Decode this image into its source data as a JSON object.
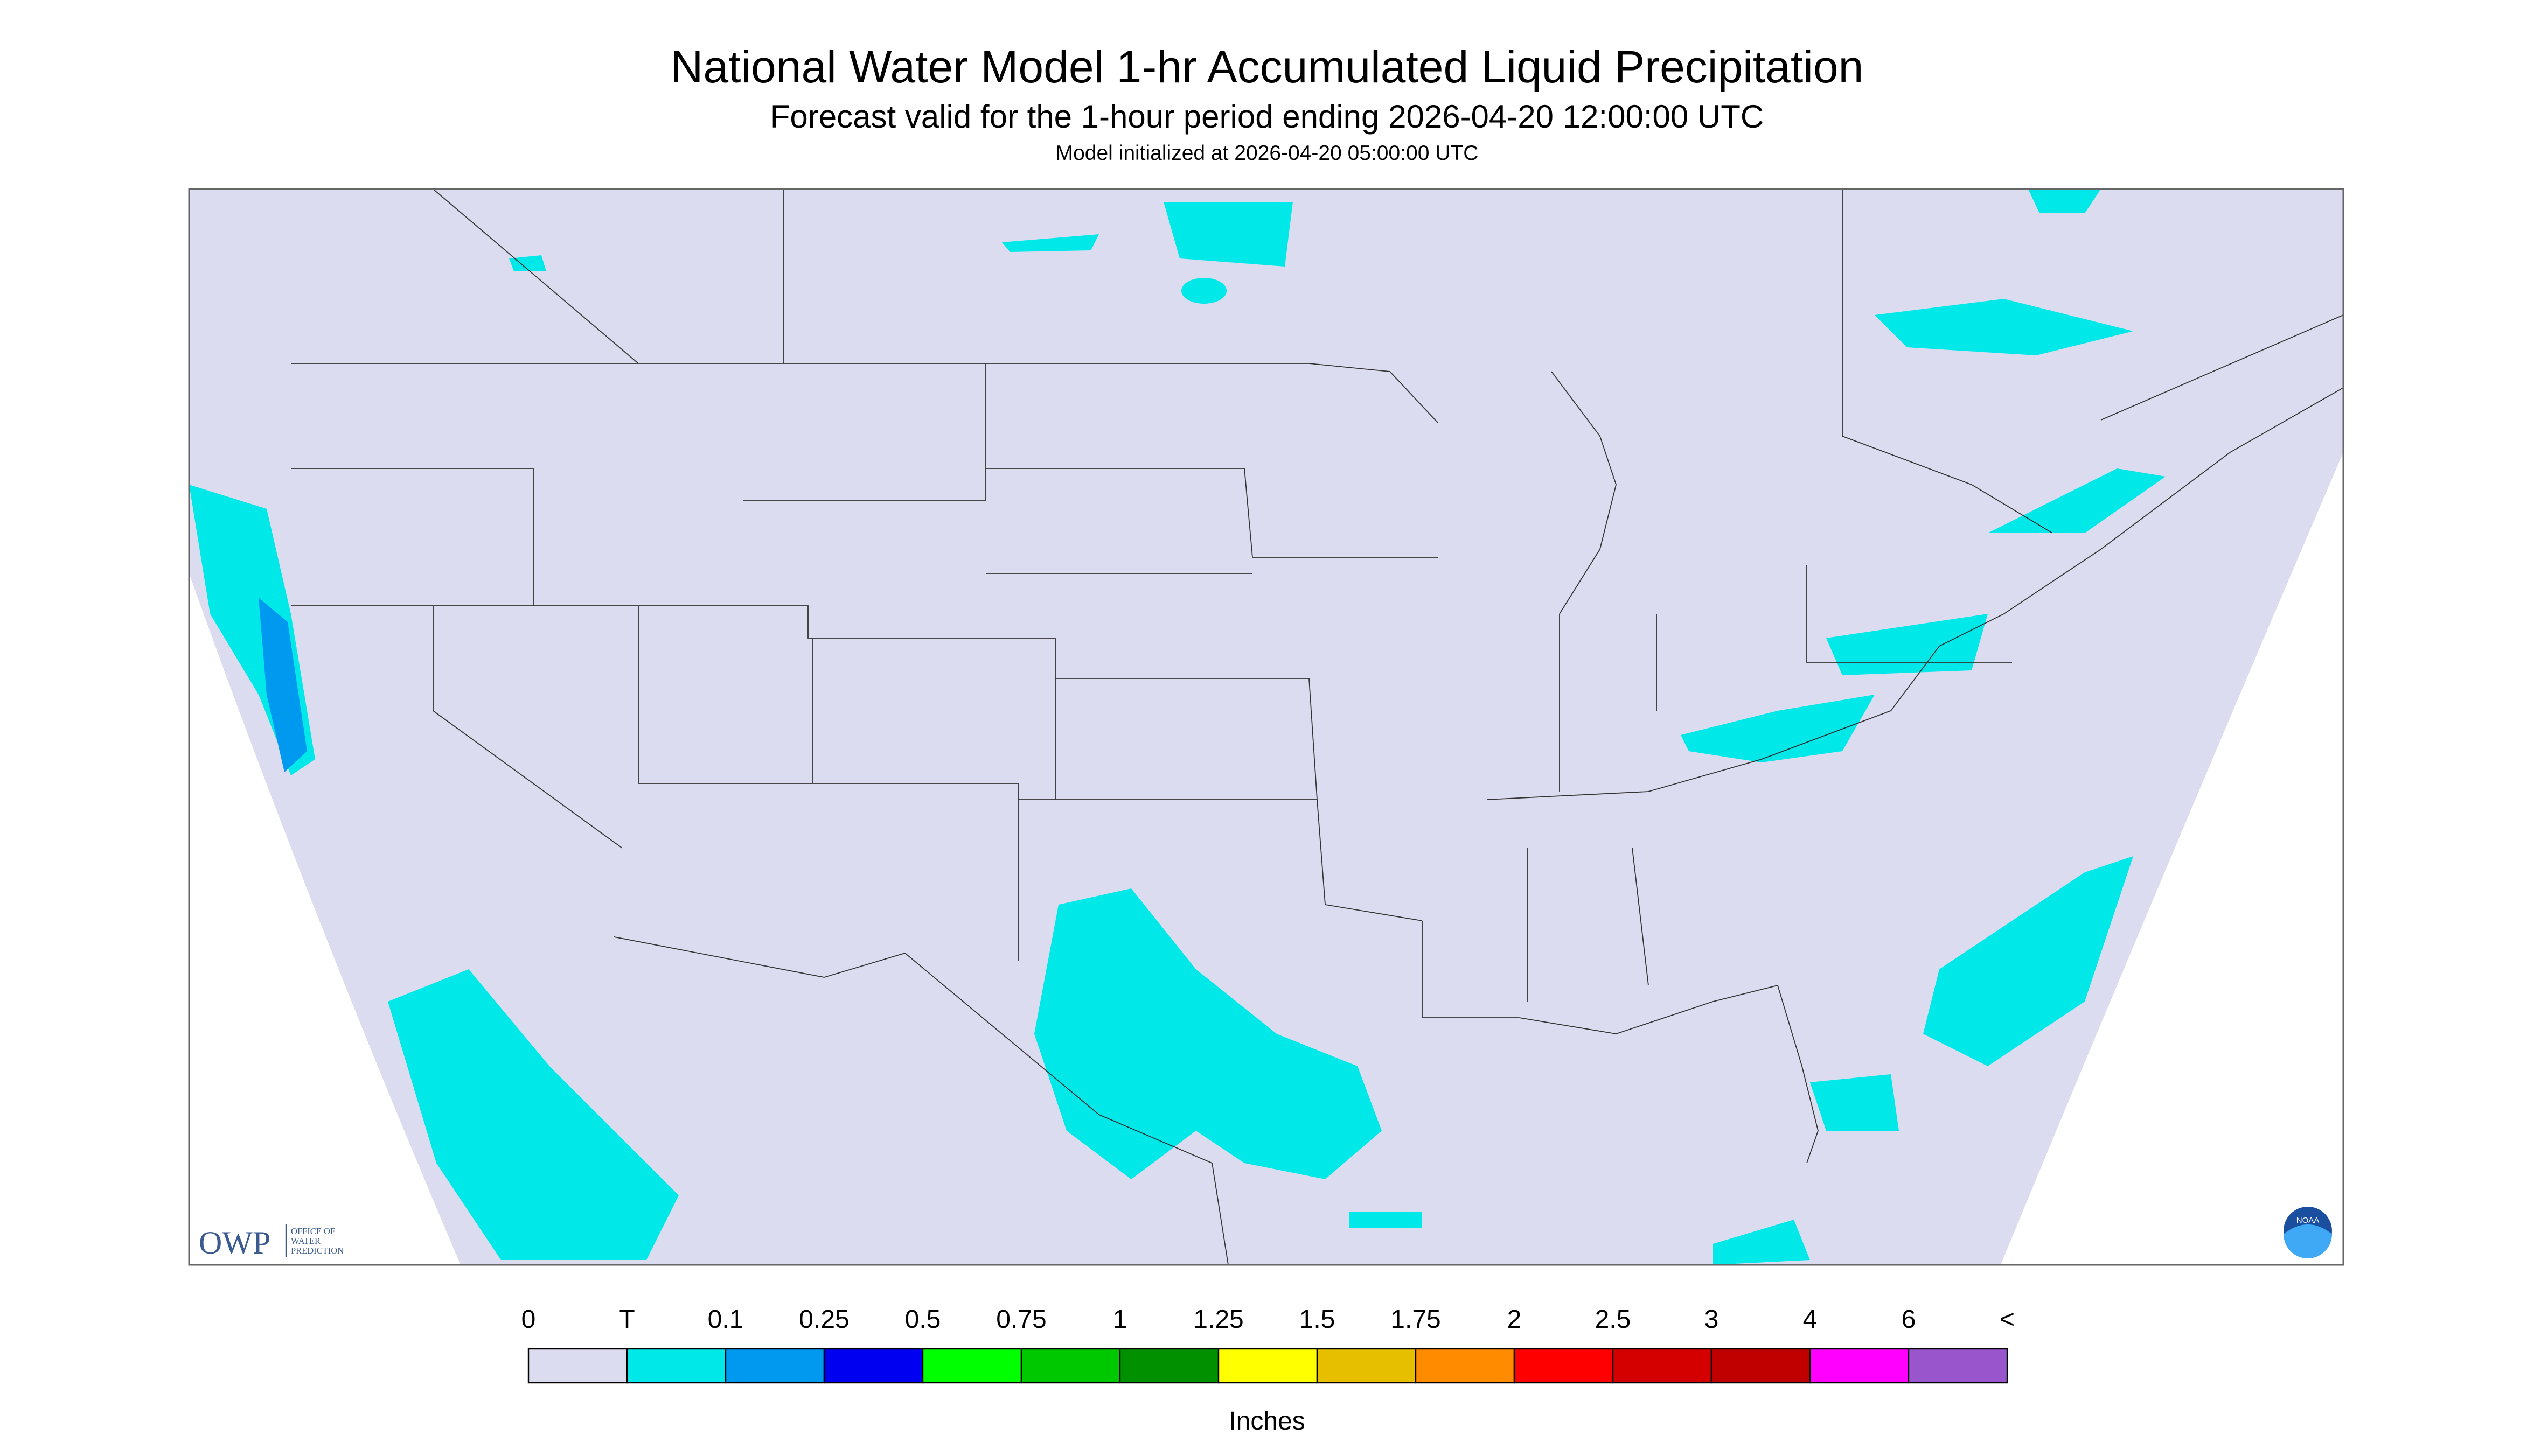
{
  "header": {
    "title": "National Water Model 1-hr Accumulated Liquid Precipitation",
    "subtitle": "Forecast valid for the 1-hour period ending 2026-04-20 12:00:00 UTC",
    "initialized": "Model initialized at 2026-04-20 05:00:00 UTC"
  },
  "legend": {
    "labels": [
      "0",
      "T",
      "0.1",
      "0.25",
      "0.5",
      "0.75",
      "1",
      "1.25",
      "1.5",
      "1.75",
      "2",
      "2.5",
      "3",
      "4",
      "6",
      "<"
    ],
    "colors": [
      "#dcdcf0",
      "#00e8e8",
      "#0099f0",
      "#0000f0",
      "#00ff00",
      "#00c800",
      "#009000",
      "#ffff00",
      "#e6c000",
      "#ff8c00",
      "#ff0000",
      "#d40000",
      "#c00000",
      "#ff00ff",
      "#9955cc"
    ],
    "unit": "Inches"
  },
  "logos": {
    "owp": "OWP",
    "owp_lines": [
      "OFFICE OF",
      "WATER",
      "PREDICTION"
    ],
    "noaa": "NOAA"
  }
}
